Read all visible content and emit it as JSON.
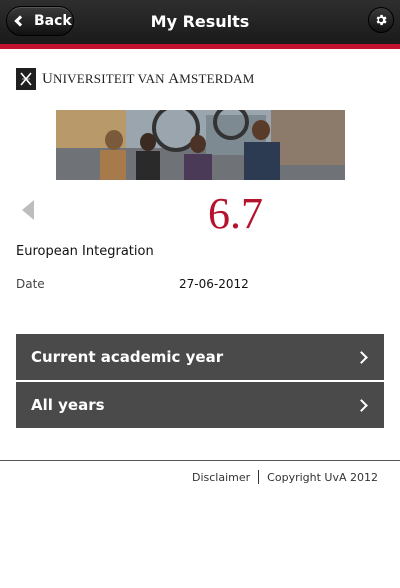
{
  "header": {
    "back_label": "Back",
    "title": "My Results",
    "settings_icon": "gear-icon"
  },
  "logo": {
    "text_first": "U",
    "text_rest_1": "NIVERSITEIT VAN ",
    "text_a": "A",
    "text_rest_2": "MSTERDAM"
  },
  "result": {
    "grade": "6.7",
    "course": "European Integration",
    "date_label": "Date",
    "date_value": "27-06-2012"
  },
  "menu": {
    "items": [
      {
        "label": "Current academic year"
      },
      {
        "label": "All years"
      }
    ]
  },
  "footer": {
    "disclaimer": "Disclaimer",
    "copyright": "Copyright UvA 2012"
  },
  "colors": {
    "accent": "#c3122f",
    "grade": "#b5122e",
    "menu_bg": "#4a4a4a"
  }
}
